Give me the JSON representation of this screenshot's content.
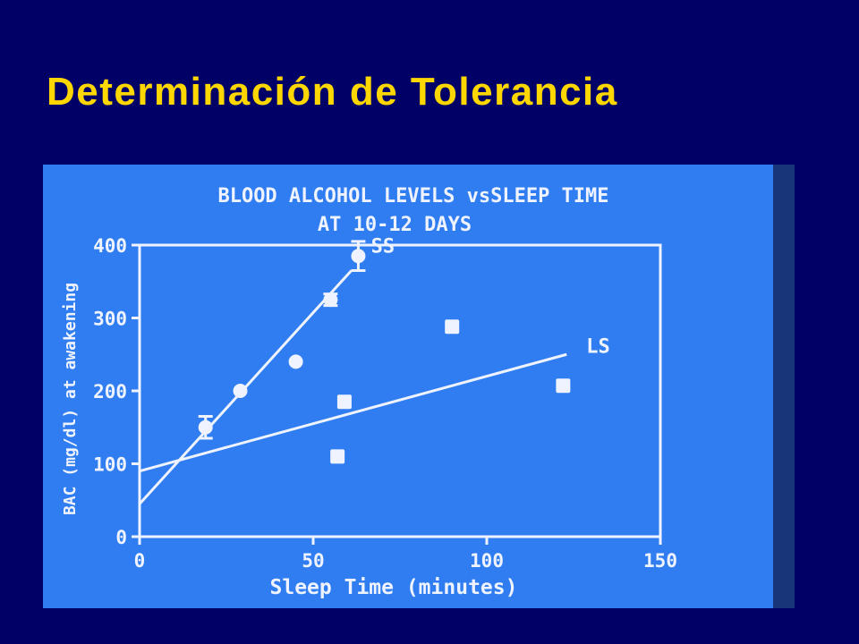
{
  "slide": {
    "title": "Determinación de Tolerancia"
  },
  "colors": {
    "background": "#000066",
    "title": "#FFD700",
    "chart_panel": "#2f7df0",
    "chart_ink": "#eef3ff"
  },
  "chart_data": {
    "type": "scatter",
    "title": "BLOOD ALCOHOL LEVELS vsSLEEP TIME",
    "subtitle": "AT 10-12 DAYS",
    "xlabel": "Sleep Time (minutes)",
    "ylabel": "BAC (mg/dl) at awakening",
    "xlim": [
      0,
      150
    ],
    "ylim": [
      0,
      400
    ],
    "xticks": [
      0,
      50,
      100,
      150
    ],
    "yticks": [
      0,
      100,
      200,
      300,
      400
    ],
    "grid": false,
    "series": [
      {
        "name": "SS",
        "marker": "circle",
        "points": [
          {
            "x": 19,
            "y": 150,
            "err": 15
          },
          {
            "x": 29,
            "y": 200
          },
          {
            "x": 45,
            "y": 240
          },
          {
            "x": 55,
            "y": 325,
            "err": 8
          },
          {
            "x": 63,
            "y": 385,
            "err": 20
          }
        ],
        "fit_line": [
          {
            "x": 0,
            "y": 45
          },
          {
            "x": 61,
            "y": 365
          }
        ]
      },
      {
        "name": "LS",
        "marker": "square",
        "points": [
          {
            "x": 57,
            "y": 110
          },
          {
            "x": 59,
            "y": 185
          },
          {
            "x": 90,
            "y": 288
          },
          {
            "x": 122,
            "y": 207
          }
        ],
        "fit_line": [
          {
            "x": 0,
            "y": 90
          },
          {
            "x": 123,
            "y": 250
          }
        ]
      }
    ]
  }
}
